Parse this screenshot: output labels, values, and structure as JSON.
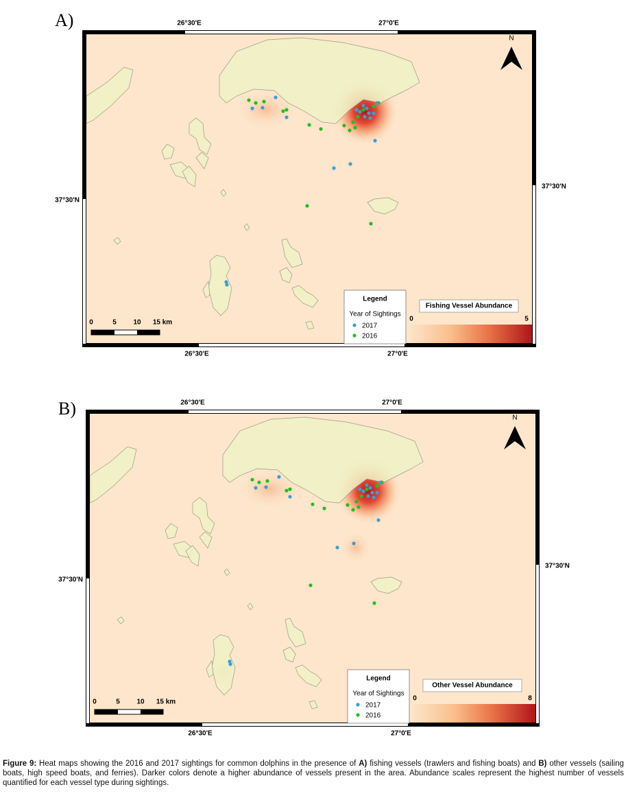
{
  "panels": [
    {
      "label": "A)",
      "top_ticks": [
        "26°30'E",
        "27°0'E"
      ],
      "bottom_ticks": [
        "26°30'E",
        "27°0'E"
      ],
      "left_tick": "37°30'N",
      "right_tick": "37°30'N",
      "north": "N",
      "scale_labels": [
        "0",
        "5",
        "10",
        "15 km"
      ],
      "legend": {
        "title": "Legend",
        "subtitle": "Year of Sightings",
        "items": [
          {
            "name": "2017",
            "color": "#3a9fd6"
          },
          {
            "name": "2016",
            "color": "#1fc01f"
          }
        ]
      },
      "abundance": {
        "title": "Fishing Vessel Abundance",
        "min": 0,
        "max": 5
      }
    },
    {
      "label": "B)",
      "top_ticks": [
        "26°30'E",
        "27°0'E"
      ],
      "bottom_ticks": [
        "26°30'E",
        "27°0'E"
      ],
      "left_tick": "37°30'N",
      "right_tick": "37°30'N",
      "north": "N",
      "scale_labels": [
        "0",
        "5",
        "10",
        "15 km"
      ],
      "legend": {
        "title": "Legend",
        "subtitle": "Year of Sightings",
        "items": [
          {
            "name": "2017",
            "color": "#3a9fd6"
          },
          {
            "name": "2016",
            "color": "#1fc01f"
          }
        ]
      },
      "abundance": {
        "title": "Other Vessel Abundance",
        "min": 0,
        "max": 8
      }
    }
  ],
  "caption": [
    "Figure 9:",
    " Heat maps showing the 2016 and 2017 sightings for common dolphins in the presence of ",
    "A)",
    " fishing vessels (trawlers and fishing boats) and ",
    "B)",
    " other vessels (sailing boats, high speed boats, and ferries). Darker colors denote a higher abundance of vessels present in the area. Abundance scales represent the highest number of vessels quantified for each vessel type during sightings."
  ]
}
